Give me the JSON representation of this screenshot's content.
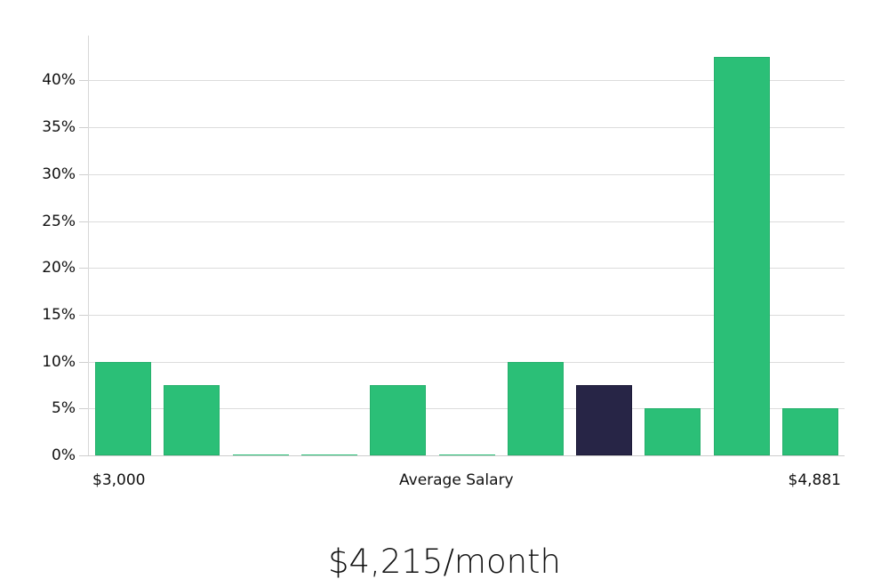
{
  "chart_data": {
    "type": "bar",
    "title": "",
    "xlabel": "Average Salary",
    "ylabel": "",
    "x_range_labels": {
      "min": "$3,000",
      "max": "$4,881"
    },
    "categories": [
      "bin 1 ($3,000)",
      "bin 2",
      "bin 3",
      "bin 4",
      "bin 5",
      "bin 6",
      "bin 7",
      "bin 8",
      "bin 9",
      "bin 10",
      "bin 11 ($4,881)"
    ],
    "values": [
      10,
      7.5,
      0,
      0,
      7.5,
      0,
      10,
      7.5,
      5,
      42.5,
      5
    ],
    "highlight_index": 7,
    "yticks": [
      "0%",
      "5%",
      "10%",
      "15%",
      "20%",
      "25%",
      "30%",
      "35%",
      "40%"
    ],
    "ylim": [
      0,
      44
    ],
    "grid": true,
    "legend": null,
    "colors": {
      "bar": "#2bbf77",
      "highlight": "#272546",
      "grid": "#dcdcdc"
    }
  },
  "axis": {
    "x_min_label": "$3,000",
    "x_center_label": "Average Salary",
    "x_max_label": "$4,881"
  },
  "summary": {
    "headline": "$4,215/month"
  }
}
